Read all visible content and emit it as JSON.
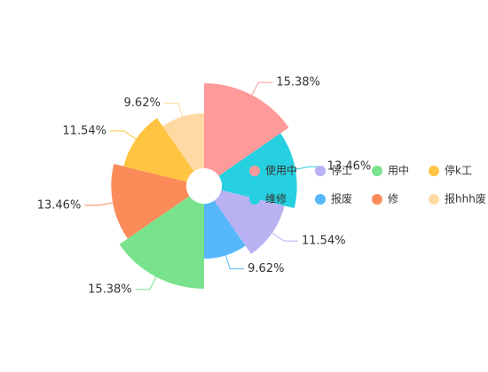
{
  "chart_data": {
    "type": "rose",
    "categories": [
      "使用中",
      "维修",
      "停工",
      "报废",
      "用中",
      "修",
      "停k工",
      "报hhh废"
    ],
    "values": [
      15.38,
      13.46,
      11.54,
      9.62,
      15.38,
      13.46,
      11.54,
      9.62
    ],
    "value_labels": [
      "15.38%",
      "13.46%",
      "11.54%",
      "9.62%",
      "15.38%",
      "13.46%",
      "11.54%",
      "9.62%"
    ],
    "colors": [
      "#ff9a9a",
      "#26d0e0",
      "#b8b2f2",
      "#56b8fb",
      "#78e38c",
      "#fb8c5a",
      "#ffc542",
      "#ffd9a3"
    ]
  }
}
